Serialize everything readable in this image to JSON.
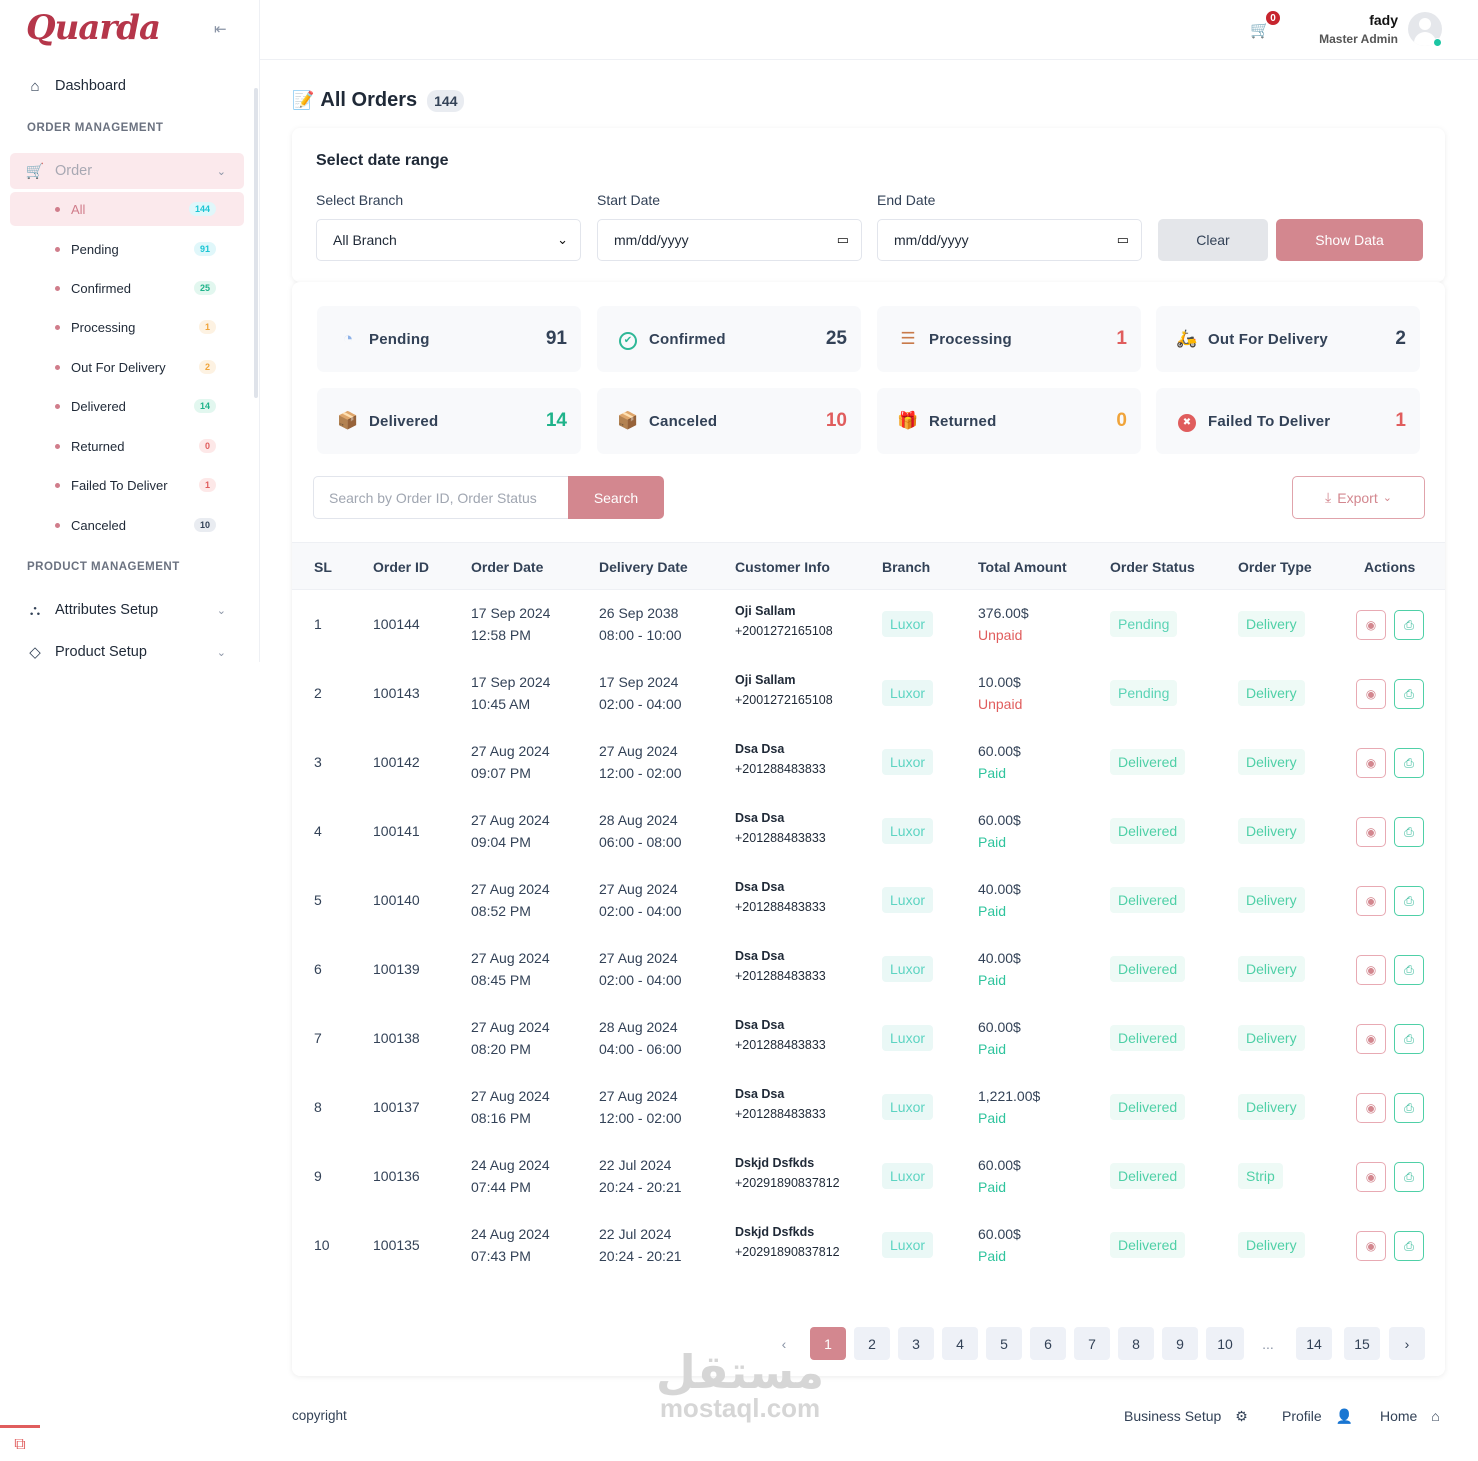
{
  "sidebar": {
    "logo": "Quarda",
    "dashboard": "Dashboard",
    "order_management_title": "ORDER MANAGEMENT",
    "order_label": "Order",
    "submenu": [
      {
        "label": "All",
        "count": "144",
        "color": "#1bc5d4",
        "bg": "#e0f7fa"
      },
      {
        "label": "Pending",
        "count": "91",
        "color": "#1bc5d4",
        "bg": "#e0f7fa"
      },
      {
        "label": "Confirmed",
        "count": "25",
        "color": "#1fb38a",
        "bg": "#e2f7ef"
      },
      {
        "label": "Processing",
        "count": "1",
        "color": "#f0a43a",
        "bg": "#fdf2e2"
      },
      {
        "label": "Out For Delivery",
        "count": "2",
        "color": "#f0a43a",
        "bg": "#fdf2e2"
      },
      {
        "label": "Delivered",
        "count": "14",
        "color": "#1fb38a",
        "bg": "#e2f7ef"
      },
      {
        "label": "Returned",
        "count": "0",
        "color": "#e05d5d",
        "bg": "#fde8e8"
      },
      {
        "label": "Failed To Deliver",
        "count": "1",
        "color": "#e05d5d",
        "bg": "#fde8e8"
      },
      {
        "label": "Canceled",
        "count": "10",
        "color": "#334257",
        "bg": "#e9ecf1"
      }
    ],
    "product_management_title": "PRODUCT MANAGEMENT",
    "attributes_setup": "Attributes Setup",
    "product_setup": "Product Setup"
  },
  "header": {
    "cart_count": "0",
    "user_name": "fady",
    "user_role": "Master Admin"
  },
  "page": {
    "title": "All Orders",
    "count": "144"
  },
  "filters": {
    "heading": "Select date range",
    "branch_label": "Select Branch",
    "branch_value": "All Branch",
    "start_label": "Start Date",
    "start_value": "mm/dd/yyyy",
    "end_label": "End Date",
    "end_value": "mm/dd/yyyy",
    "clear_label": "Clear",
    "show_label": "Show Data"
  },
  "stats": [
    {
      "label": "Pending",
      "value": "91",
      "icon": "clock-icon",
      "color": "#334257"
    },
    {
      "label": "Confirmed",
      "value": "25",
      "icon": "check-circle-icon",
      "color": "#334257"
    },
    {
      "label": "Processing",
      "value": "1",
      "icon": "stack-icon",
      "color": "#e05d5d"
    },
    {
      "label": "Out For Delivery",
      "value": "2",
      "icon": "delivery-bike-icon",
      "color": "#334257"
    },
    {
      "label": "Delivered",
      "value": "14",
      "icon": "box-icon",
      "color": "#1fb38a"
    },
    {
      "label": "Canceled",
      "value": "10",
      "icon": "canceled-box-icon",
      "color": "#e05d5d"
    },
    {
      "label": "Returned",
      "value": "0",
      "icon": "returned-icon",
      "color": "#f0a43a"
    },
    {
      "label": "Failed To Deliver",
      "value": "1",
      "icon": "x-circle-icon",
      "color": "#e05d5d"
    }
  ],
  "search": {
    "placeholder": "Search by Order ID, Order Status",
    "button": "Search",
    "export": "Export"
  },
  "table": {
    "headers": [
      "SL",
      "Order ID",
      "Order Date",
      "Delivery Date",
      "Customer Info",
      "Branch",
      "Total Amount",
      "Order Status",
      "Order Type",
      "Actions"
    ],
    "rows": [
      {
        "sl": "1",
        "id": "100144",
        "odate": "17 Sep 2024",
        "otime": "12:58 PM",
        "ddate": "26 Sep 2038",
        "dtime": "08:00 - 10:00",
        "cname": "Oji Sallam",
        "cphone": "+2001272165108",
        "branch": "Luxor",
        "amount": "376.00$",
        "payment": "Unpaid",
        "status": "Pending",
        "type": "Delivery"
      },
      {
        "sl": "2",
        "id": "100143",
        "odate": "17 Sep 2024",
        "otime": "10:45 AM",
        "ddate": "17 Sep 2024",
        "dtime": "02:00 - 04:00",
        "cname": "Oji Sallam",
        "cphone": "+2001272165108",
        "branch": "Luxor",
        "amount": "10.00$",
        "payment": "Unpaid",
        "status": "Pending",
        "type": "Delivery"
      },
      {
        "sl": "3",
        "id": "100142",
        "odate": "27 Aug 2024",
        "otime": "09:07 PM",
        "ddate": "27 Aug 2024",
        "dtime": "12:00 - 02:00",
        "cname": "Dsa Dsa",
        "cphone": "+201288483833",
        "branch": "Luxor",
        "amount": "60.00$",
        "payment": "Paid",
        "status": "Delivered",
        "type": "Delivery"
      },
      {
        "sl": "4",
        "id": "100141",
        "odate": "27 Aug 2024",
        "otime": "09:04 PM",
        "ddate": "28 Aug 2024",
        "dtime": "06:00 - 08:00",
        "cname": "Dsa Dsa",
        "cphone": "+201288483833",
        "branch": "Luxor",
        "amount": "60.00$",
        "payment": "Paid",
        "status": "Delivered",
        "type": "Delivery"
      },
      {
        "sl": "5",
        "id": "100140",
        "odate": "27 Aug 2024",
        "otime": "08:52 PM",
        "ddate": "27 Aug 2024",
        "dtime": "02:00 - 04:00",
        "cname": "Dsa Dsa",
        "cphone": "+201288483833",
        "branch": "Luxor",
        "amount": "40.00$",
        "payment": "Paid",
        "status": "Delivered",
        "type": "Delivery"
      },
      {
        "sl": "6",
        "id": "100139",
        "odate": "27 Aug 2024",
        "otime": "08:45 PM",
        "ddate": "27 Aug 2024",
        "dtime": "02:00 - 04:00",
        "cname": "Dsa Dsa",
        "cphone": "+201288483833",
        "branch": "Luxor",
        "amount": "40.00$",
        "payment": "Paid",
        "status": "Delivered",
        "type": "Delivery"
      },
      {
        "sl": "7",
        "id": "100138",
        "odate": "27 Aug 2024",
        "otime": "08:20 PM",
        "ddate": "28 Aug 2024",
        "dtime": "04:00 - 06:00",
        "cname": "Dsa Dsa",
        "cphone": "+201288483833",
        "branch": "Luxor",
        "amount": "60.00$",
        "payment": "Paid",
        "status": "Delivered",
        "type": "Delivery"
      },
      {
        "sl": "8",
        "id": "100137",
        "odate": "27 Aug 2024",
        "otime": "08:16 PM",
        "ddate": "27 Aug 2024",
        "dtime": "12:00 - 02:00",
        "cname": "Dsa Dsa",
        "cphone": "+201288483833",
        "branch": "Luxor",
        "amount": "1,221.00$",
        "payment": "Paid",
        "status": "Delivered",
        "type": "Delivery"
      },
      {
        "sl": "9",
        "id": "100136",
        "odate": "24 Aug 2024",
        "otime": "07:44 PM",
        "ddate": "22 Jul 2024",
        "dtime": "20:24 - 20:21",
        "cname": "Dskjd Dsfkds",
        "cphone": "+20291890837812",
        "branch": "Luxor",
        "amount": "60.00$",
        "payment": "Paid",
        "status": "Delivered",
        "type": "Strip"
      },
      {
        "sl": "10",
        "id": "100135",
        "odate": "24 Aug 2024",
        "otime": "07:43 PM",
        "ddate": "22 Jul 2024",
        "dtime": "20:24 - 20:21",
        "cname": "Dskjd Dsfkds",
        "cphone": "+20291890837812",
        "branch": "Luxor",
        "amount": "60.00$",
        "payment": "Paid",
        "status": "Delivered",
        "type": "Delivery"
      }
    ]
  },
  "pagination": {
    "prev": "‹",
    "pages": [
      "1",
      "2",
      "3",
      "4",
      "5",
      "6",
      "7",
      "8",
      "9",
      "10",
      "...",
      "14",
      "15"
    ],
    "next": "›",
    "current": "1"
  },
  "footer": {
    "copyright": "copyright",
    "links": [
      "Business Setup",
      "Profile",
      "Home"
    ]
  },
  "watermark": {
    "arabic": "مستقل",
    "latin": "mostaql.com"
  },
  "colors": {
    "accent": "#d3878f",
    "teal": "#4fd0a7",
    "unpaid": "#e05d5d",
    "paid": "#2fc49d"
  }
}
